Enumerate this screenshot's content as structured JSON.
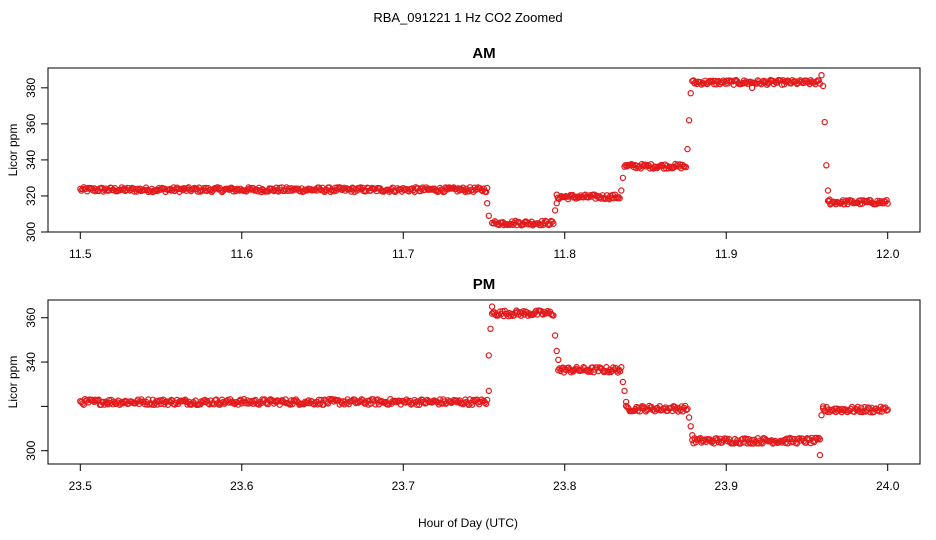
{
  "title": "RBA_091221  1 Hz CO2 Zoomed",
  "xlabel": "Hour of Day (UTC)",
  "colors": {
    "points": "#e31a1c",
    "frame": "#000000"
  },
  "chart_data": [
    {
      "type": "scatter",
      "title": "AM",
      "xlabel": "Hour of Day (UTC)",
      "ylabel": "Licor ppm",
      "xlim": [
        11.48,
        12.02
      ],
      "ylim": [
        300,
        391
      ],
      "xticks": [
        "11.5",
        "11.6",
        "11.7",
        "11.8",
        "11.9",
        "12.0"
      ],
      "yticks": [
        "300",
        "320",
        "340",
        "360",
        "380"
      ],
      "grid": false,
      "segments": [
        {
          "x": [
            11.5,
            11.752
          ],
          "y": 323.5
        },
        {
          "x": [
            11.756,
            11.793
          ],
          "y": 305
        },
        {
          "x": [
            11.795,
            11.834
          ],
          "y": 319.5
        },
        {
          "x": [
            11.837,
            11.875
          ],
          "y": 336.5
        },
        {
          "x": [
            11.879,
            11.958
          ],
          "y": 383
        },
        {
          "x": [
            11.963,
            12.0
          ],
          "y": 316.5
        }
      ],
      "transition_points": [
        [
          11.752,
          316
        ],
        [
          11.753,
          309
        ],
        [
          11.755,
          305
        ],
        [
          11.794,
          312
        ],
        [
          11.795,
          316
        ],
        [
          11.835,
          323
        ],
        [
          11.836,
          330
        ],
        [
          11.876,
          346
        ],
        [
          11.877,
          362
        ],
        [
          11.878,
          377
        ],
        [
          11.916,
          380
        ],
        [
          11.959,
          387
        ],
        [
          11.96,
          381
        ],
        [
          11.961,
          361
        ],
        [
          11.962,
          337
        ],
        [
          11.963,
          323
        ],
        [
          11.964,
          318
        ]
      ]
    },
    {
      "type": "scatter",
      "title": "PM",
      "xlabel": "Hour of Day (UTC)",
      "ylabel": "Licor ppm",
      "xlim": [
        23.48,
        24.02
      ],
      "ylim": [
        294,
        368
      ],
      "xticks": [
        "23.5",
        "23.6",
        "23.7",
        "23.8",
        "23.9",
        "24.0"
      ],
      "yticks": [
        "300",
        "340",
        "360"
      ],
      "grid": false,
      "segments": [
        {
          "x": [
            23.5,
            23.752
          ],
          "y": 322
        },
        {
          "x": [
            23.755,
            23.793
          ],
          "y": 362
        },
        {
          "x": [
            23.796,
            23.835
          ],
          "y": 336.5
        },
        {
          "x": [
            23.838,
            23.876
          ],
          "y": 319
        },
        {
          "x": [
            23.879,
            23.958
          ],
          "y": 304.5
        },
        {
          "x": [
            23.96,
            24.0
          ],
          "y": 318.5
        }
      ],
      "transition_points": [
        [
          23.753,
          327
        ],
        [
          23.753,
          343
        ],
        [
          23.754,
          355
        ],
        [
          23.755,
          365
        ],
        [
          23.794,
          352
        ],
        [
          23.795,
          345
        ],
        [
          23.796,
          341
        ],
        [
          23.836,
          331
        ],
        [
          23.837,
          327
        ],
        [
          23.838,
          322
        ],
        [
          23.877,
          315
        ],
        [
          23.878,
          311
        ],
        [
          23.879,
          307
        ],
        [
          23.958,
          298
        ],
        [
          23.959,
          316
        ],
        [
          23.96,
          320
        ]
      ]
    }
  ]
}
